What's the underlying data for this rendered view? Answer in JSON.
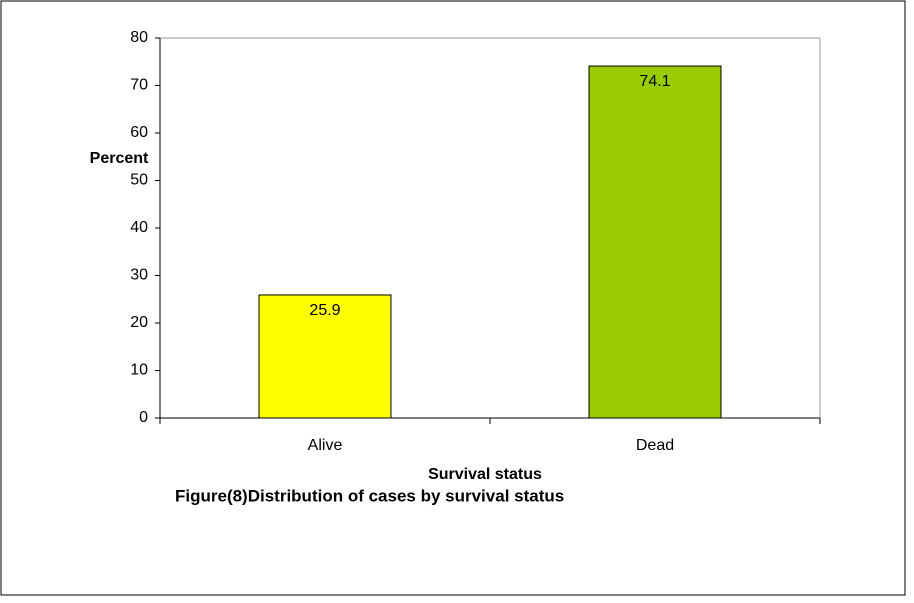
{
  "chart_data": {
    "type": "bar",
    "title": "Figure(8)Distribution of cases by survival status",
    "xlabel": "Survival status",
    "ylabel": "Percent",
    "categories": [
      "Alive",
      "Dead"
    ],
    "values": [
      25.9,
      74.1
    ],
    "colors": [
      "#ffff00",
      "#99cc00"
    ],
    "ylim": [
      0,
      80
    ],
    "yticks": [
      0,
      10,
      20,
      30,
      40,
      50,
      60,
      70,
      80
    ],
    "grid": false
  }
}
